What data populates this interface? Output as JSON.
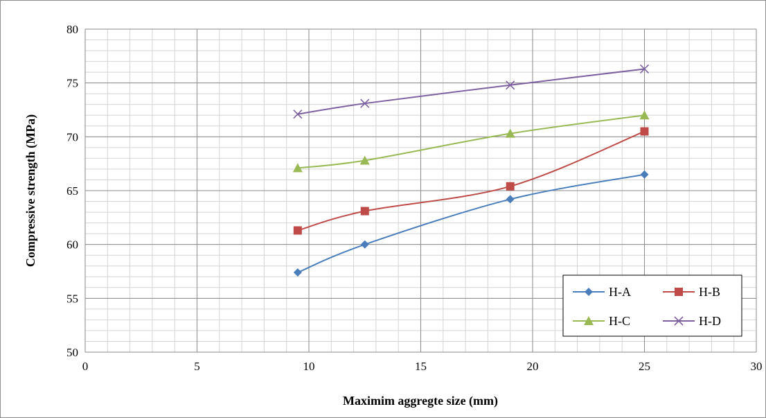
{
  "chart_data": {
    "type": "line",
    "title": "",
    "xlabel": "Maximim aggregte size (mm)",
    "ylabel": "Compressive strength (MPa)",
    "xlim": [
      0,
      30
    ],
    "ylim": [
      50,
      80
    ],
    "x_ticks": [
      0,
      5,
      10,
      15,
      20,
      25,
      30
    ],
    "y_ticks": [
      50,
      55,
      60,
      65,
      70,
      75,
      80
    ],
    "x_tick_labels": [
      "0",
      "5",
      "10",
      "15",
      "20",
      "25",
      "30"
    ],
    "y_tick_labels": [
      "50",
      "55",
      "60",
      "65",
      "70",
      "75",
      "80"
    ],
    "grid": true,
    "legend_position": "bottom-right",
    "series": [
      {
        "name": "H-A",
        "color": "#4a7ebb",
        "marker": "diamond",
        "x": [
          9.5,
          12.5,
          19,
          25
        ],
        "y": [
          57.4,
          60.0,
          64.2,
          66.5
        ]
      },
      {
        "name": "H-B",
        "color": "#be4b48",
        "marker": "square",
        "x": [
          9.5,
          12.5,
          19,
          25
        ],
        "y": [
          61.3,
          63.1,
          65.4,
          70.5
        ]
      },
      {
        "name": "H-C",
        "color": "#98b954",
        "marker": "triangle",
        "x": [
          9.5,
          12.5,
          19,
          25
        ],
        "y": [
          67.1,
          67.8,
          70.3,
          72.0
        ]
      },
      {
        "name": "H-D",
        "color": "#7d60a0",
        "marker": "x",
        "x": [
          9.5,
          12.5,
          19,
          25
        ],
        "y": [
          72.1,
          73.1,
          74.8,
          76.3
        ]
      }
    ]
  }
}
